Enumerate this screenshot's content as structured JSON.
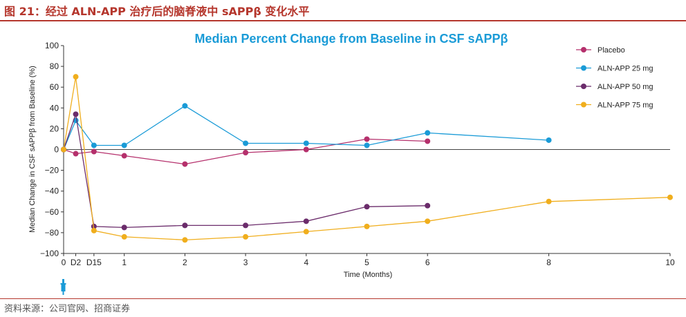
{
  "figure": {
    "title": "图 21：经过 ALN-APP 治疗后的脑脊液中 sAPPβ 变化水平",
    "source": "资料来源：公司官网、招商证券"
  },
  "chart_data": {
    "type": "line",
    "title": "Median Percent Change from Baseline in CSF sAPPβ",
    "xlabel": "Time (Months)",
    "ylabel": "Median Change in CSF sAPPβ from Baseline (%)",
    "ylim": [
      -100,
      100
    ],
    "yticks": [
      100,
      80,
      60,
      40,
      20,
      0,
      -20,
      -40,
      -60,
      -80,
      -100
    ],
    "xticks": [
      {
        "label": "0",
        "x": 0
      },
      {
        "label": "D2",
        "x": 0.2
      },
      {
        "label": "D15",
        "x": 0.5
      },
      {
        "label": "1",
        "x": 1
      },
      {
        "label": "2",
        "x": 2
      },
      {
        "label": "3",
        "x": 3
      },
      {
        "label": "4",
        "x": 4
      },
      {
        "label": "5",
        "x": 5
      },
      {
        "label": "6",
        "x": 6
      },
      {
        "label": "8",
        "x": 8
      },
      {
        "label": "10",
        "x": 10
      }
    ],
    "xlim": [
      0,
      10
    ],
    "grid": false,
    "zero_line": true,
    "legend_position": "top-right",
    "dose_marker": "syringe-icon",
    "series": [
      {
        "name": "Placebo",
        "color": "#b5306c",
        "points": [
          [
            0,
            0
          ],
          [
            0.2,
            -4
          ],
          [
            0.5,
            -2
          ],
          [
            1,
            -6
          ],
          [
            2,
            -14
          ],
          [
            3,
            -3
          ],
          [
            4,
            0
          ],
          [
            5,
            10
          ],
          [
            6,
            8
          ]
        ]
      },
      {
        "name": "ALN-APP 25 mg",
        "color": "#1a9bd7",
        "points": [
          [
            0,
            0
          ],
          [
            0.2,
            28
          ],
          [
            0.5,
            4
          ],
          [
            1,
            4
          ],
          [
            2,
            42
          ],
          [
            3,
            6
          ],
          [
            4,
            6
          ],
          [
            5,
            4
          ],
          [
            6,
            16
          ],
          [
            8,
            9
          ]
        ]
      },
      {
        "name": "ALN-APP 50 mg",
        "color": "#6b2c6b",
        "points": [
          [
            0,
            0
          ],
          [
            0.2,
            34
          ],
          [
            0.5,
            -74
          ],
          [
            1,
            -75
          ],
          [
            2,
            -73
          ],
          [
            3,
            -73
          ],
          [
            4,
            -69
          ],
          [
            5,
            -55
          ],
          [
            6,
            -54
          ]
        ]
      },
      {
        "name": "ALN-APP 75 mg",
        "color": "#f0ae1d",
        "points": [
          [
            0,
            0
          ],
          [
            0.2,
            70
          ],
          [
            0.5,
            -78
          ],
          [
            1,
            -84
          ],
          [
            2,
            -87
          ],
          [
            3,
            -84
          ],
          [
            4,
            -79
          ],
          [
            5,
            -74
          ],
          [
            6,
            -69
          ],
          [
            8,
            -50
          ],
          [
            10,
            -46
          ]
        ]
      }
    ]
  }
}
